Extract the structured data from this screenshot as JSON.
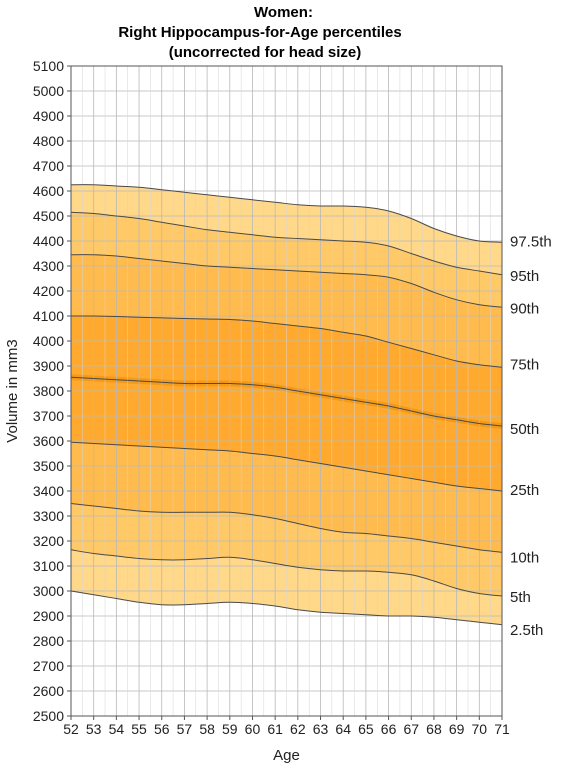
{
  "chart_data": {
    "type": "area",
    "title": [
      "Women:",
      "Right Hippocampus-for-Age percentiles",
      "(uncorrected for head size)"
    ],
    "xlabel": "Age",
    "ylabel": "Volume in mm3",
    "xlim": [
      52,
      71
    ],
    "ylim": [
      2500,
      5100
    ],
    "x_ticks": [
      52,
      53,
      54,
      55,
      56,
      57,
      58,
      59,
      60,
      61,
      62,
      63,
      64,
      65,
      66,
      67,
      68,
      69,
      70,
      71
    ],
    "y_ticks": [
      2500,
      2600,
      2700,
      2800,
      2900,
      3000,
      3100,
      3200,
      3300,
      3400,
      3500,
      3600,
      3700,
      3800,
      3900,
      4000,
      4100,
      4200,
      4300,
      4400,
      4500,
      4600,
      4700,
      4800,
      4900,
      5000,
      5100
    ],
    "grid": true,
    "x": [
      52,
      53,
      54,
      55,
      56,
      57,
      58,
      59,
      60,
      61,
      62,
      63,
      64,
      65,
      66,
      67,
      68,
      69,
      70,
      71
    ],
    "series": [
      {
        "name": "2.5th",
        "values": [
          3000,
          2985,
          2970,
          2955,
          2945,
          2945,
          2950,
          2955,
          2950,
          2940,
          2925,
          2915,
          2910,
          2905,
          2900,
          2900,
          2895,
          2885,
          2875,
          2865
        ]
      },
      {
        "name": "5th",
        "values": [
          3165,
          3150,
          3140,
          3130,
          3125,
          3125,
          3130,
          3135,
          3125,
          3110,
          3095,
          3085,
          3080,
          3080,
          3075,
          3065,
          3040,
          3010,
          2990,
          2980
        ]
      },
      {
        "name": "10th",
        "values": [
          3350,
          3340,
          3330,
          3320,
          3315,
          3315,
          3315,
          3315,
          3305,
          3290,
          3270,
          3250,
          3235,
          3230,
          3220,
          3210,
          3195,
          3180,
          3165,
          3155
        ]
      },
      {
        "name": "25th",
        "values": [
          3595,
          3590,
          3585,
          3580,
          3575,
          3570,
          3565,
          3560,
          3550,
          3540,
          3525,
          3510,
          3495,
          3480,
          3465,
          3450,
          3435,
          3420,
          3410,
          3400
        ]
      },
      {
        "name": "50th",
        "values": [
          3855,
          3850,
          3845,
          3840,
          3835,
          3830,
          3830,
          3830,
          3825,
          3815,
          3800,
          3785,
          3770,
          3755,
          3740,
          3720,
          3700,
          3685,
          3670,
          3660
        ]
      },
      {
        "name": "75th",
        "values": [
          4100,
          4100,
          4098,
          4095,
          4093,
          4090,
          4088,
          4086,
          4080,
          4070,
          4060,
          4050,
          4035,
          4020,
          3995,
          3970,
          3945,
          3920,
          3905,
          3895
        ]
      },
      {
        "name": "90th",
        "values": [
          4345,
          4345,
          4340,
          4330,
          4320,
          4310,
          4300,
          4295,
          4290,
          4285,
          4280,
          4275,
          4270,
          4265,
          4255,
          4230,
          4195,
          4165,
          4145,
          4135
        ]
      },
      {
        "name": "95th",
        "values": [
          4515,
          4510,
          4500,
          4490,
          4475,
          4460,
          4445,
          4435,
          4425,
          4415,
          4410,
          4405,
          4400,
          4395,
          4380,
          4350,
          4320,
          4295,
          4280,
          4265
        ]
      },
      {
        "name": "97.5th",
        "values": [
          4625,
          4625,
          4620,
          4615,
          4605,
          4595,
          4585,
          4575,
          4565,
          4555,
          4545,
          4540,
          4540,
          4535,
          4520,
          4490,
          4450,
          4420,
          4400,
          4395
        ]
      }
    ],
    "colors": {
      "outer_band": "#ffd88a",
      "band_2": "#ffc967",
      "band_3": "#ffbb4d",
      "inner_band": "#ffaa2e",
      "median_band": "#f59a17",
      "line": "#4a4a4a",
      "grid": "#b8b8b8"
    }
  }
}
